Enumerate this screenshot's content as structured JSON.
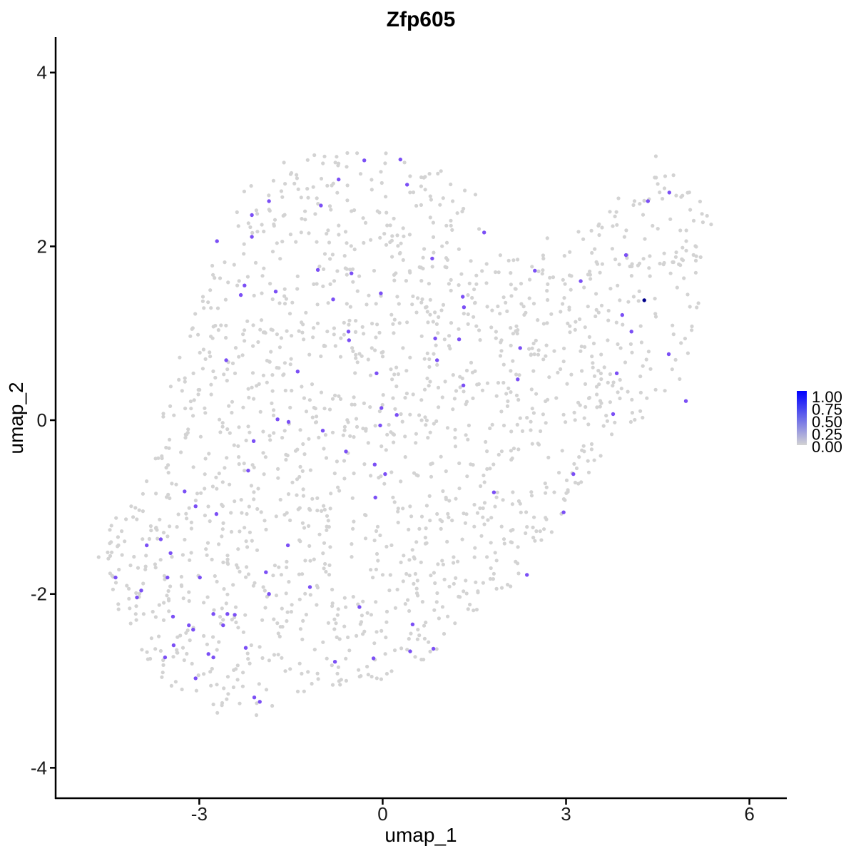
{
  "chart_data": {
    "type": "scatter",
    "title": "Zfp605",
    "xlabel": "umap_1",
    "ylabel": "umap_2",
    "xlim": [
      -5.35,
      6.6
    ],
    "ylim": [
      -4.35,
      4.4
    ],
    "x_ticks": [
      -3,
      0,
      3,
      6
    ],
    "y_ticks": [
      -4,
      -2,
      0,
      2,
      4
    ],
    "x_tick_labels": [
      "-3",
      "0",
      "3",
      "6"
    ],
    "y_tick_labels": [
      "-4",
      "-2",
      "0",
      "2",
      "4"
    ],
    "grid": false,
    "legend": {
      "placement": "right",
      "type": "colorbar",
      "labels": [
        "1.00",
        "0.75",
        "0.50",
        "0.25",
        "0.00"
      ],
      "color_low": "#d3d3d3",
      "color_high": "#0000ff"
    },
    "background_points": {
      "color": "#d3d3d3",
      "value": 0,
      "count": 1650,
      "x_range": [
        -4.8,
        5.4
      ],
      "y_range": [
        -3.5,
        3.1
      ]
    },
    "expressing_points": [
      {
        "x": 0.29,
        "y": 3.0,
        "value": 0.6
      },
      {
        "x": -0.3,
        "y": 2.99,
        "value": 0.6
      },
      {
        "x": -0.72,
        "y": 2.77,
        "value": 0.6
      },
      {
        "x": 0.4,
        "y": 2.71,
        "value": 0.6
      },
      {
        "x": -1.86,
        "y": 2.52,
        "value": 0.6
      },
      {
        "x": -1.01,
        "y": 2.47,
        "value": 0.6
      },
      {
        "x": -2.14,
        "y": 2.36,
        "value": 0.6
      },
      {
        "x": -2.14,
        "y": 2.11,
        "value": 0.6
      },
      {
        "x": -2.71,
        "y": 2.06,
        "value": 0.6
      },
      {
        "x": 1.66,
        "y": 2.16,
        "value": 0.6
      },
      {
        "x": 0.81,
        "y": 1.86,
        "value": 0.6
      },
      {
        "x": 3.98,
        "y": 1.9,
        "value": 0.6
      },
      {
        "x": 4.69,
        "y": 2.62,
        "value": 0.6
      },
      {
        "x": 4.34,
        "y": 2.52,
        "value": 0.6
      },
      {
        "x": -1.06,
        "y": 1.73,
        "value": 0.6
      },
      {
        "x": -0.51,
        "y": 1.69,
        "value": 0.6
      },
      {
        "x": 2.49,
        "y": 1.72,
        "value": 0.6
      },
      {
        "x": 3.24,
        "y": 1.6,
        "value": 0.6
      },
      {
        "x": -2.26,
        "y": 1.55,
        "value": 0.6
      },
      {
        "x": -1.75,
        "y": 1.48,
        "value": 0.6
      },
      {
        "x": -2.32,
        "y": 1.44,
        "value": 0.6
      },
      {
        "x": -0.03,
        "y": 1.46,
        "value": 0.6
      },
      {
        "x": -0.81,
        "y": 1.39,
        "value": 0.6
      },
      {
        "x": 1.31,
        "y": 1.42,
        "value": 0.6
      },
      {
        "x": 1.33,
        "y": 1.3,
        "value": 0.6
      },
      {
        "x": 4.28,
        "y": 1.38,
        "value": 1.0
      },
      {
        "x": 3.92,
        "y": 1.21,
        "value": 0.6
      },
      {
        "x": -0.56,
        "y": 1.02,
        "value": 0.6
      },
      {
        "x": -0.55,
        "y": 0.92,
        "value": 0.6
      },
      {
        "x": 0.86,
        "y": 0.94,
        "value": 0.6
      },
      {
        "x": 1.25,
        "y": 0.93,
        "value": 0.6
      },
      {
        "x": 4.07,
        "y": 1.02,
        "value": 0.6
      },
      {
        "x": -2.56,
        "y": 0.69,
        "value": 0.6
      },
      {
        "x": 0.89,
        "y": 0.69,
        "value": 0.6
      },
      {
        "x": 2.25,
        "y": 0.83,
        "value": 0.6
      },
      {
        "x": 4.68,
        "y": 0.76,
        "value": 0.6
      },
      {
        "x": -1.39,
        "y": 0.56,
        "value": 0.6
      },
      {
        "x": -0.1,
        "y": 0.54,
        "value": 0.6
      },
      {
        "x": 2.21,
        "y": 0.47,
        "value": 0.6
      },
      {
        "x": 1.32,
        "y": 0.4,
        "value": 0.6
      },
      {
        "x": 3.83,
        "y": 0.54,
        "value": 0.6
      },
      {
        "x": 4.96,
        "y": 0.22,
        "value": 0.6
      },
      {
        "x": -0.02,
        "y": 0.14,
        "value": 0.6
      },
      {
        "x": 0.23,
        "y": 0.06,
        "value": 0.6
      },
      {
        "x": 3.77,
        "y": 0.07,
        "value": 0.6
      },
      {
        "x": -1.72,
        "y": 0.01,
        "value": 0.6
      },
      {
        "x": -1.54,
        "y": -0.02,
        "value": 0.6
      },
      {
        "x": -0.04,
        "y": -0.06,
        "value": 0.6
      },
      {
        "x": -0.98,
        "y": -0.12,
        "value": 0.6
      },
      {
        "x": -2.11,
        "y": -0.24,
        "value": 0.6
      },
      {
        "x": -0.6,
        "y": -0.36,
        "value": 0.6
      },
      {
        "x": -0.13,
        "y": -0.51,
        "value": 0.6
      },
      {
        "x": -2.2,
        "y": -0.58,
        "value": 0.6
      },
      {
        "x": 0.04,
        "y": -0.62,
        "value": 0.6
      },
      {
        "x": 3.12,
        "y": -0.62,
        "value": 0.6
      },
      {
        "x": -3.24,
        "y": -0.82,
        "value": 0.6
      },
      {
        "x": 1.82,
        "y": -0.83,
        "value": 0.6
      },
      {
        "x": -0.12,
        "y": -0.89,
        "value": 0.6
      },
      {
        "x": -3.06,
        "y": -0.99,
        "value": 0.6
      },
      {
        "x": -2.72,
        "y": -1.08,
        "value": 0.6
      },
      {
        "x": 2.96,
        "y": -1.06,
        "value": 0.6
      },
      {
        "x": -3.63,
        "y": -1.37,
        "value": 0.6
      },
      {
        "x": -3.86,
        "y": -1.44,
        "value": 0.6
      },
      {
        "x": -1.55,
        "y": -1.44,
        "value": 0.6
      },
      {
        "x": -3.47,
        "y": -1.53,
        "value": 0.6
      },
      {
        "x": -1.91,
        "y": -1.75,
        "value": 0.6
      },
      {
        "x": -4.37,
        "y": -1.81,
        "value": 0.6
      },
      {
        "x": -3.52,
        "y": -1.81,
        "value": 0.6
      },
      {
        "x": -2.99,
        "y": -1.81,
        "value": 0.6
      },
      {
        "x": 2.36,
        "y": -1.78,
        "value": 0.6
      },
      {
        "x": -1.86,
        "y": -2.0,
        "value": 0.6
      },
      {
        "x": -1.19,
        "y": -1.92,
        "value": 0.6
      },
      {
        "x": -3.95,
        "y": -1.96,
        "value": 0.6
      },
      {
        "x": -4.02,
        "y": -2.04,
        "value": 0.6
      },
      {
        "x": -0.38,
        "y": -2.15,
        "value": 0.6
      },
      {
        "x": -3.43,
        "y": -2.26,
        "value": 0.6
      },
      {
        "x": -2.77,
        "y": -2.23,
        "value": 0.6
      },
      {
        "x": -2.54,
        "y": -2.23,
        "value": 0.6
      },
      {
        "x": -2.42,
        "y": -2.24,
        "value": 0.6
      },
      {
        "x": -2.61,
        "y": -2.36,
        "value": 0.6
      },
      {
        "x": 0.49,
        "y": -2.35,
        "value": 0.6
      },
      {
        "x": -3.17,
        "y": -2.36,
        "value": 0.6
      },
      {
        "x": -3.1,
        "y": -2.41,
        "value": 0.6
      },
      {
        "x": -3.42,
        "y": -2.59,
        "value": 0.6
      },
      {
        "x": -2.24,
        "y": -2.62,
        "value": 0.6
      },
      {
        "x": 0.45,
        "y": -2.66,
        "value": 0.6
      },
      {
        "x": 0.83,
        "y": -2.63,
        "value": 0.6
      },
      {
        "x": -2.85,
        "y": -2.69,
        "value": 0.6
      },
      {
        "x": -2.77,
        "y": -2.73,
        "value": 0.6
      },
      {
        "x": -3.56,
        "y": -2.73,
        "value": 0.6
      },
      {
        "x": -0.15,
        "y": -2.74,
        "value": 0.6
      },
      {
        "x": -0.78,
        "y": -2.78,
        "value": 0.6
      },
      {
        "x": -3.06,
        "y": -2.97,
        "value": 0.6
      },
      {
        "x": -2.1,
        "y": -3.19,
        "value": 0.6
      },
      {
        "x": -2.01,
        "y": -3.24,
        "value": 0.6
      }
    ]
  }
}
